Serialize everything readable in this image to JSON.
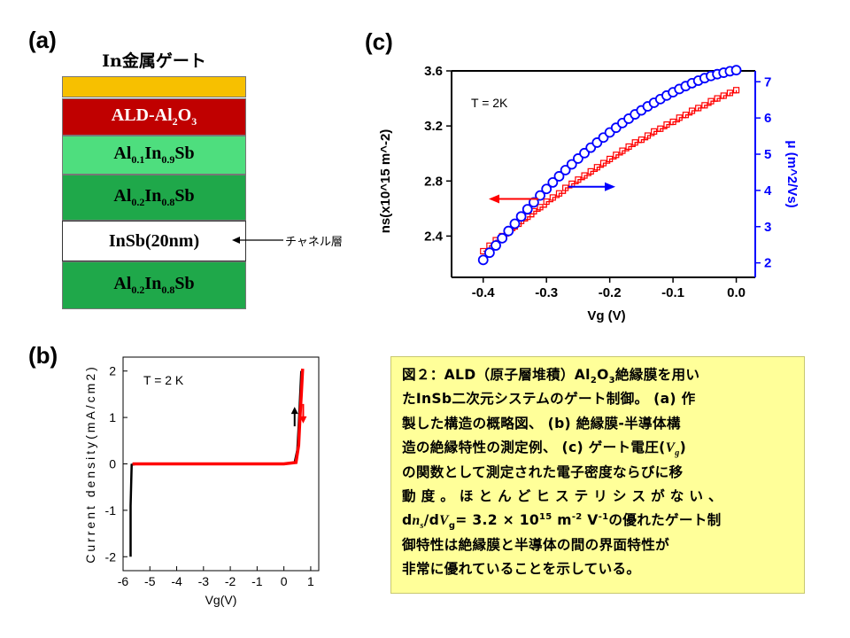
{
  "panels": {
    "a": "(a)",
    "b": "(b)",
    "c": "(c)"
  },
  "stack": {
    "title": "In金属ゲート",
    "gate_color": "#f7c000",
    "layers": [
      {
        "parts": [
          "ALD-Al",
          "2",
          "O",
          "3"
        ],
        "color": "#c00000",
        "text_color": "#ffffff"
      },
      {
        "parts": [
          "Al",
          "0.1",
          "In",
          "0.9",
          "Sb"
        ],
        "color": "#4ede7e",
        "text_color": "#000000"
      },
      {
        "parts": [
          "Al",
          "0.2",
          "In",
          "0.8",
          "Sb"
        ],
        "color": "#1fa84a",
        "text_color": "#000000"
      },
      {
        "parts": [
          "InSb(20nm)"
        ],
        "color": "#ffffff",
        "text_color": "#000000"
      },
      {
        "parts": [
          "Al",
          "0.2",
          "In",
          "0.8",
          "Sb"
        ],
        "color": "#1fa84a",
        "text_color": "#000000"
      }
    ],
    "callout": "チャネル層"
  },
  "caption": {
    "lines": [
      "図２：ALD（原子層堆積）Al₂O₃絶縁膜を用い",
      "たInSb二次元システムのゲート制御。 (a) 作",
      "製した構造の概略図、 (b)  絶縁膜-半導体構",
      "造の絶縁特性の測定例、 (c)  ゲート電圧(Vg)",
      "の関数として測定された電子密度ならびに移",
      "動 度 。   ほ と ん ど ヒ ス テ リ シ ス が な い 、",
      "dns/dVg= 3.2 × 10¹⁵  m⁻²  V⁻¹の優れたゲート制",
      "御特性は絶縁膜と半導体の間の界面特性が",
      "非常に優れていることを示している。"
    ]
  },
  "chart_data": [
    {
      "id": "b",
      "type": "line",
      "annotation": "T = 2 K",
      "xlabel": "Vg(V)",
      "ylabel": "Current density(mA/cm2)",
      "xlim": [
        -6,
        1.3
      ],
      "ylim": [
        -2.3,
        2.3
      ],
      "xticks": [
        -6,
        -5,
        -4,
        -3,
        -2,
        -1,
        0,
        1
      ],
      "yticks": [
        -2,
        -1,
        0,
        1,
        2
      ],
      "series": [
        {
          "color": "#000000",
          "x": [
            -5.72,
            -5.72,
            -5.68,
            -5.5,
            0,
            0.4,
            0.5,
            0.55,
            0.6,
            0.65
          ],
          "y": [
            -2.0,
            -0.9,
            -0.02,
            0,
            0,
            0.03,
            0.3,
            0.8,
            1.4,
            2.0
          ]
        },
        {
          "color": "#ff0000",
          "x": [
            -5.65,
            -5.5,
            0,
            0.45,
            0.55,
            0.6,
            0.65,
            0.7
          ],
          "y": [
            0,
            0,
            0,
            0.03,
            0.4,
            1.0,
            1.5,
            2.05
          ]
        }
      ],
      "arrows": [
        {
          "color": "#000000",
          "x": 0.4,
          "y": 1.0,
          "direction": "up"
        },
        {
          "color": "#ff0000",
          "x": 0.72,
          "y": 1.1,
          "direction": "down"
        }
      ]
    },
    {
      "id": "c",
      "type": "scatter",
      "annotation": "T = 2K",
      "xlabel": "Vg (V)",
      "ylabel_left": "ns(x10^15 m^-2)",
      "ylabel_right": "μ (m^2/Vs)",
      "xlim": [
        -0.45,
        0.03
      ],
      "ylim_left": [
        2.1,
        3.6
      ],
      "ylim_right": [
        1.6,
        7.3
      ],
      "xticks": [
        -0.4,
        -0.3,
        -0.2,
        -0.1,
        0.0
      ],
      "xtick_labels": [
        "-0.4",
        "-0.3",
        "-0.2",
        "-0.1",
        "0.0"
      ],
      "yticks_left": [
        2.4,
        2.8,
        3.2,
        3.6
      ],
      "yticks_right": [
        2,
        3,
        4,
        5,
        6,
        7
      ],
      "series": [
        {
          "name": "ns",
          "axis": "left",
          "color": "#ff0000",
          "marker": "square",
          "step": true,
          "x": [
            -0.4,
            -0.39,
            -0.38,
            -0.37,
            -0.36,
            -0.35,
            -0.34,
            -0.33,
            -0.32,
            -0.31,
            -0.3,
            -0.29,
            -0.28,
            -0.27,
            -0.26,
            -0.25,
            -0.24,
            -0.23,
            -0.22,
            -0.21,
            -0.2,
            -0.19,
            -0.18,
            -0.17,
            -0.16,
            -0.15,
            -0.14,
            -0.13,
            -0.12,
            -0.11,
            -0.1,
            -0.09,
            -0.08,
            -0.07,
            -0.06,
            -0.05,
            -0.04,
            -0.03,
            -0.02,
            -0.01,
            0.0
          ],
          "y": [
            2.29,
            2.33,
            2.37,
            2.4,
            2.44,
            2.47,
            2.51,
            2.54,
            2.58,
            2.61,
            2.65,
            2.68,
            2.71,
            2.75,
            2.78,
            2.81,
            2.84,
            2.87,
            2.9,
            2.93,
            2.96,
            2.99,
            3.02,
            3.05,
            3.08,
            3.1,
            3.13,
            3.16,
            3.18,
            3.21,
            3.23,
            3.26,
            3.28,
            3.31,
            3.33,
            3.35,
            3.38,
            3.4,
            3.42,
            3.44,
            3.46
          ]
        },
        {
          "name": "μ",
          "axis": "right",
          "color": "#0000ff",
          "marker": "circle",
          "x": [
            -0.4,
            -0.39,
            -0.38,
            -0.37,
            -0.36,
            -0.35,
            -0.34,
            -0.33,
            -0.32,
            -0.31,
            -0.3,
            -0.29,
            -0.28,
            -0.27,
            -0.26,
            -0.25,
            -0.24,
            -0.23,
            -0.22,
            -0.21,
            -0.2,
            -0.19,
            -0.18,
            -0.17,
            -0.16,
            -0.15,
            -0.14,
            -0.13,
            -0.12,
            -0.11,
            -0.1,
            -0.09,
            -0.08,
            -0.07,
            -0.06,
            -0.05,
            -0.04,
            -0.03,
            -0.02,
            -0.01,
            0.0
          ],
          "y": [
            2.08,
            2.28,
            2.48,
            2.68,
            2.88,
            3.08,
            3.28,
            3.48,
            3.67,
            3.86,
            4.04,
            4.22,
            4.39,
            4.56,
            4.72,
            4.88,
            5.03,
            5.18,
            5.32,
            5.46,
            5.6,
            5.73,
            5.86,
            5.98,
            6.1,
            6.21,
            6.32,
            6.42,
            6.52,
            6.62,
            6.71,
            6.8,
            6.88,
            6.96,
            7.03,
            7.1,
            7.16,
            7.21,
            7.25,
            7.29,
            7.32
          ]
        }
      ],
      "arrows": [
        {
          "color": "#ff0000",
          "direction": "left"
        },
        {
          "color": "#0000ff",
          "direction": "right"
        }
      ]
    }
  ]
}
